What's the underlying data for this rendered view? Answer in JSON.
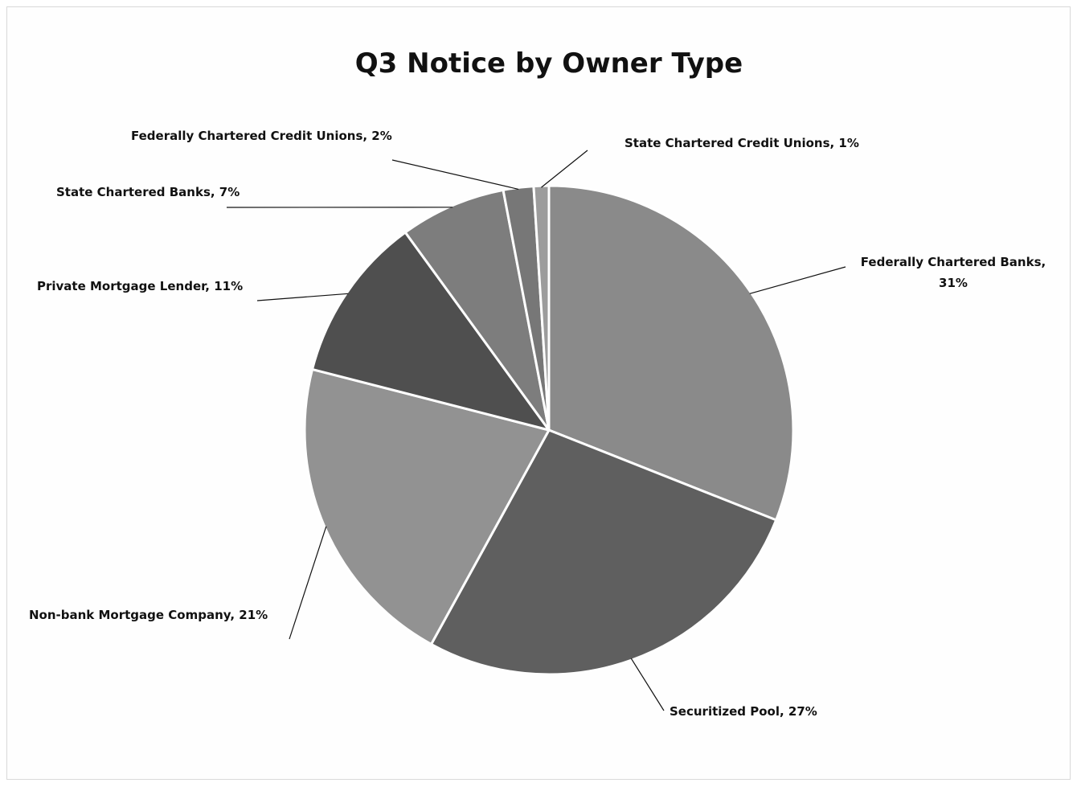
{
  "chart_data": {
    "type": "pie",
    "title": "Q3 Notice by Owner Type",
    "slices": [
      {
        "label": "Federally Chartered Banks",
        "value": 31,
        "pct_label": "31%",
        "color": "#8a8a8a"
      },
      {
        "label": "Securitized Pool",
        "value": 27,
        "pct_label": "27%",
        "color": "#5f5f5f"
      },
      {
        "label": "Non-bank Mortgage Company",
        "value": 21,
        "pct_label": "21%",
        "color": "#929292"
      },
      {
        "label": "Private Mortgage Lender",
        "value": 11,
        "pct_label": "11%",
        "color": "#4f4f4f"
      },
      {
        "label": "State Chartered Banks",
        "value": 7,
        "pct_label": "7%",
        "color": "#7d7d7d"
      },
      {
        "label": "Federally Chartered Credit Unions",
        "value": 2,
        "pct_label": "2%",
        "color": "#777777"
      },
      {
        "label": "State Chartered Credit Unions",
        "value": 1,
        "pct_label": "1%",
        "color": "#9c9c9c"
      }
    ],
    "start_angle_deg": 0,
    "direction": "clockwise",
    "legend": "none",
    "data_labels": "outside with leader lines"
  }
}
